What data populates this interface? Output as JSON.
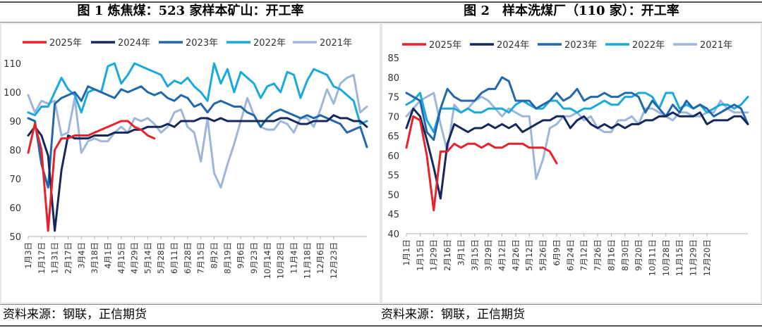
{
  "charts": [
    {
      "title": "图 1 炼焦煤：523 家样本矿山：开工率",
      "source": "资料来源：钢联，正信期货"
    },
    {
      "title": "图 2　样本洗煤厂（110 家）：开工率",
      "source": "资料来源：钢联，正信期货"
    }
  ],
  "chart_data": [
    {
      "type": "line",
      "title": "图 1 炼焦煤：523 家样本矿山：开工率",
      "ylim": [
        50,
        110
      ],
      "yticks": [
        50,
        60,
        70,
        80,
        90,
        100,
        110
      ],
      "grid": false,
      "legend_position": "top",
      "x_count": 52,
      "x_tick_labels": [
        "1月3日",
        "1月17日",
        "1月31日",
        "2月17日",
        "3月4日",
        "3月18日",
        "4月1日",
        "4月15日",
        "4月29日",
        "5月14日",
        "5月28日",
        "6月11日",
        "6月28日",
        "7月15日",
        "8月2日",
        "8月19日",
        "9月6日",
        "9月23日",
        "10月14日",
        "10月28日",
        "11月4日",
        "11月18日",
        "12月6日",
        "12月23日"
      ],
      "series": [
        {
          "name": "2025年",
          "color": "#e8212a",
          "values": [
            79,
            89,
            80,
            52,
            80,
            84,
            84,
            85,
            85,
            85,
            86,
            87,
            88,
            89,
            90,
            90,
            88,
            87,
            85,
            84
          ]
        },
        {
          "name": "2024年",
          "color": "#14285c",
          "values": [
            85,
            88,
            85,
            78,
            52,
            73,
            85,
            84,
            84,
            84,
            85,
            85,
            85,
            86,
            86,
            86,
            87,
            87,
            88,
            88,
            88,
            89,
            88,
            90,
            90,
            90,
            91,
            91,
            90,
            91,
            90,
            90,
            90,
            90,
            90,
            90,
            90,
            90,
            91,
            91,
            90,
            89,
            89,
            90,
            90,
            90,
            92,
            91,
            91,
            90,
            90,
            88
          ]
        },
        {
          "name": "2023年",
          "color": "#2167ab",
          "values": [
            91,
            90,
            75,
            67,
            96,
            98,
            99,
            100,
            97,
            102,
            101,
            100,
            99,
            98,
            101,
            100,
            101,
            102,
            100,
            99,
            100,
            98,
            97,
            99,
            98,
            95,
            96,
            93,
            96,
            97,
            96,
            95,
            95,
            93,
            92,
            88,
            91,
            93,
            94,
            93,
            92,
            91,
            92,
            91,
            92,
            91,
            90,
            89,
            86,
            87,
            88,
            81
          ]
        },
        {
          "name": "2022年",
          "color": "#19a9dc",
          "values": [
            93,
            92,
            95,
            95,
            100,
            105,
            101,
            99,
            93,
            100,
            101,
            100,
            109,
            110,
            103,
            106,
            110,
            109,
            108,
            107,
            106,
            102,
            104,
            103,
            105,
            102,
            100,
            97,
            110,
            103,
            108,
            100,
            107,
            105,
            103,
            98,
            102,
            103,
            100,
            107,
            106,
            98,
            104,
            108,
            107,
            106,
            102,
            101,
            99,
            97,
            89,
            90
          ]
        },
        {
          "name": "2021年",
          "color": "#9db6da",
          "values": [
            99,
            93,
            97,
            96,
            97,
            85,
            86,
            98,
            79,
            83,
            84,
            83,
            83,
            86,
            88,
            86,
            91,
            90,
            91,
            89,
            86,
            88,
            93,
            94,
            88,
            86,
            76,
            91,
            72,
            67,
            75,
            82,
            90,
            98,
            92,
            88,
            87,
            87,
            90,
            89,
            86,
            91,
            91,
            88,
            94,
            101,
            96,
            103,
            105,
            106,
            93,
            95
          ]
        }
      ]
    },
    {
      "type": "line",
      "title": "图 2　样本洗煤厂（110 家）：开工率",
      "ylim": [
        40,
        85
      ],
      "yticks": [
        40,
        45,
        50,
        55,
        60,
        65,
        70,
        75,
        80,
        85
      ],
      "grid": false,
      "legend_position": "top",
      "x_count": 51,
      "x_tick_labels": [
        "1月1日",
        "1月15日",
        "1月29日",
        "2月16日",
        "3月1日",
        "3月15日",
        "3月29日",
        "4月12日",
        "4月26日",
        "5月12日",
        "5月26日",
        "6月9日",
        "6月24日",
        "7月12日",
        "7月26日",
        "8月16日",
        "8月30日",
        "9月20日",
        "10月11日",
        "10月28日",
        "11月15日",
        "11月29日",
        "12月20日"
      ],
      "series": [
        {
          "name": "2025年",
          "color": "#e8212a",
          "values": [
            62,
            70,
            69,
            60,
            46,
            61,
            61,
            63,
            62,
            63,
            63,
            62,
            63,
            62,
            62,
            63,
            63,
            63,
            62,
            62,
            62,
            61,
            58
          ]
        },
        {
          "name": "2024年",
          "color": "#14285c",
          "values": [
            67,
            72,
            70,
            64,
            57,
            49,
            63,
            68,
            67,
            66,
            67,
            67,
            68,
            67,
            68,
            67,
            68,
            66,
            67,
            68,
            69,
            69,
            70,
            70,
            67,
            69,
            70,
            68,
            67,
            68,
            67,
            68,
            67,
            68,
            68,
            69,
            69,
            70,
            70,
            71,
            70,
            70,
            70,
            71,
            68,
            69,
            69,
            69,
            70,
            70,
            68
          ]
        },
        {
          "name": "2023年",
          "color": "#2167ab",
          "values": [
            76,
            75,
            74,
            66,
            64,
            72,
            77,
            75,
            74,
            74,
            74,
            76,
            77,
            77,
            80,
            79,
            74,
            74,
            74,
            72,
            73,
            74,
            76,
            74,
            75,
            77,
            74,
            75,
            75,
            76,
            75,
            75,
            76,
            76,
            75,
            71,
            74,
            72,
            70,
            73,
            71,
            74,
            72,
            73,
            72,
            70,
            71,
            72,
            73,
            72,
            68
          ]
        },
        {
          "name": "2022年",
          "color": "#19a9dc",
          "values": [
            73,
            74,
            76,
            69,
            66,
            72,
            72,
            72,
            71,
            72,
            71,
            71,
            72,
            72,
            72,
            71,
            73,
            74,
            73,
            72,
            72,
            74,
            74,
            72,
            72,
            71,
            72,
            72,
            73,
            74,
            73,
            73,
            75,
            75,
            76,
            76,
            75,
            72,
            76,
            76,
            72,
            73,
            72,
            73,
            71,
            72,
            73,
            73,
            72,
            73,
            75
          ]
        },
        {
          "name": "2021年",
          "color": "#9db6da",
          "values": [
            70,
            72,
            74,
            75,
            76,
            68,
            61,
            73,
            71,
            72,
            74,
            75,
            74,
            72,
            70,
            72,
            71,
            70,
            70,
            54,
            59,
            67,
            68,
            70,
            70,
            71,
            69,
            70,
            67,
            66,
            66,
            69,
            69,
            70,
            68,
            72,
            72,
            71,
            70,
            69,
            71,
            71,
            70,
            70,
            71,
            71,
            74,
            72,
            71,
            71,
            71
          ]
        }
      ]
    }
  ]
}
